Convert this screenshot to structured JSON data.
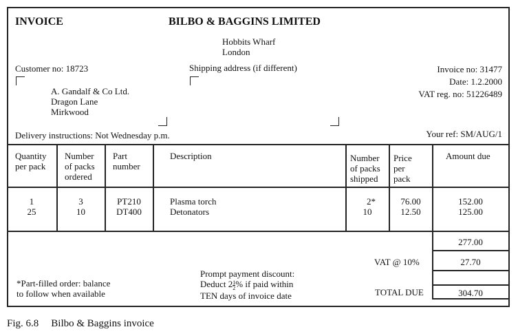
{
  "header": {
    "doc_type": "INVOICE",
    "company": "BILBO & BAGGINS LIMITED",
    "company_address": [
      "Hobbits Wharf",
      "London"
    ]
  },
  "customer": {
    "customer_no": "Customer no:  18723",
    "address": [
      "A. Gandalf & Co Ltd.",
      "Dragon Lane",
      "Mirkwood"
    ],
    "shipping_label": "Shipping address (if different)",
    "delivery": "Delivery instructions: Not Wednesday p.m."
  },
  "invoice_meta": {
    "invoice_no": "Invoice no: 31477",
    "date": "Date: 1.2.2000",
    "vat_reg": "VAT reg. no: 51226489",
    "your_ref": "Your ref: SM/AUG/1"
  },
  "table": {
    "columns": [
      "Quantity per pack",
      "Number of packs ordered",
      "Part number",
      "Description",
      "Number of packs shipped",
      "Price per pack",
      "Amount due"
    ],
    "column_lines": [
      [
        "Quantity",
        "per pack"
      ],
      [
        "Number",
        "of packs",
        "ordered"
      ],
      [
        "Part",
        "number"
      ],
      [
        "Description"
      ],
      [
        "Number",
        "of packs",
        "shipped"
      ],
      [
        "Price",
        "per",
        "pack"
      ],
      [
        "Amount due"
      ]
    ],
    "rows": [
      [
        "1",
        "3",
        "PT210",
        "Plasma torch",
        "2*",
        "76.00",
        "152.00"
      ],
      [
        "25",
        "10",
        "DT400",
        "Detonators",
        "10",
        "12.50",
        "125.00"
      ]
    ]
  },
  "totals": {
    "subtotal": "277.00",
    "vat_label": "VAT @ 10%",
    "vat": "27.70",
    "total_label": "TOTAL DUE",
    "total": "304.70"
  },
  "notes": {
    "part_filled": [
      "*Part-filled order:  balance",
      "to follow when available"
    ],
    "discount_line1": "Prompt payment discount:",
    "discount_prefix": "Deduct 2",
    "discount_frac_num": "1",
    "discount_frac_den": "2",
    "discount_suffix": "% if paid within",
    "discount_line3": "TEN days of invoice date"
  },
  "caption": {
    "fig": "Fig. 6.8",
    "title": "Bilbo & Baggins invoice"
  }
}
